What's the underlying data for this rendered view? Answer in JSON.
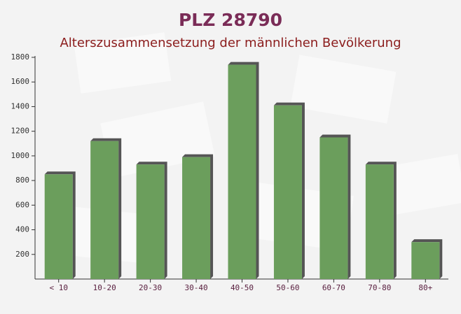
{
  "chart_data": {
    "type": "bar",
    "title": "PLZ 28790",
    "subtitle": "Alterszusammensetzung der männlichen Bevölkerung",
    "categories": [
      "< 10",
      "10-20",
      "20-30",
      "30-40",
      "40-50",
      "50-60",
      "60-70",
      "70-80",
      "80+"
    ],
    "values": [
      850,
      1120,
      930,
      990,
      1740,
      1410,
      1150,
      930,
      300
    ],
    "color": "#6b9e5c",
    "ylim": [
      0,
      1800
    ],
    "yticks": [
      200,
      400,
      600,
      800,
      1000,
      1200,
      1400,
      1600,
      1800
    ],
    "grid": false
  }
}
